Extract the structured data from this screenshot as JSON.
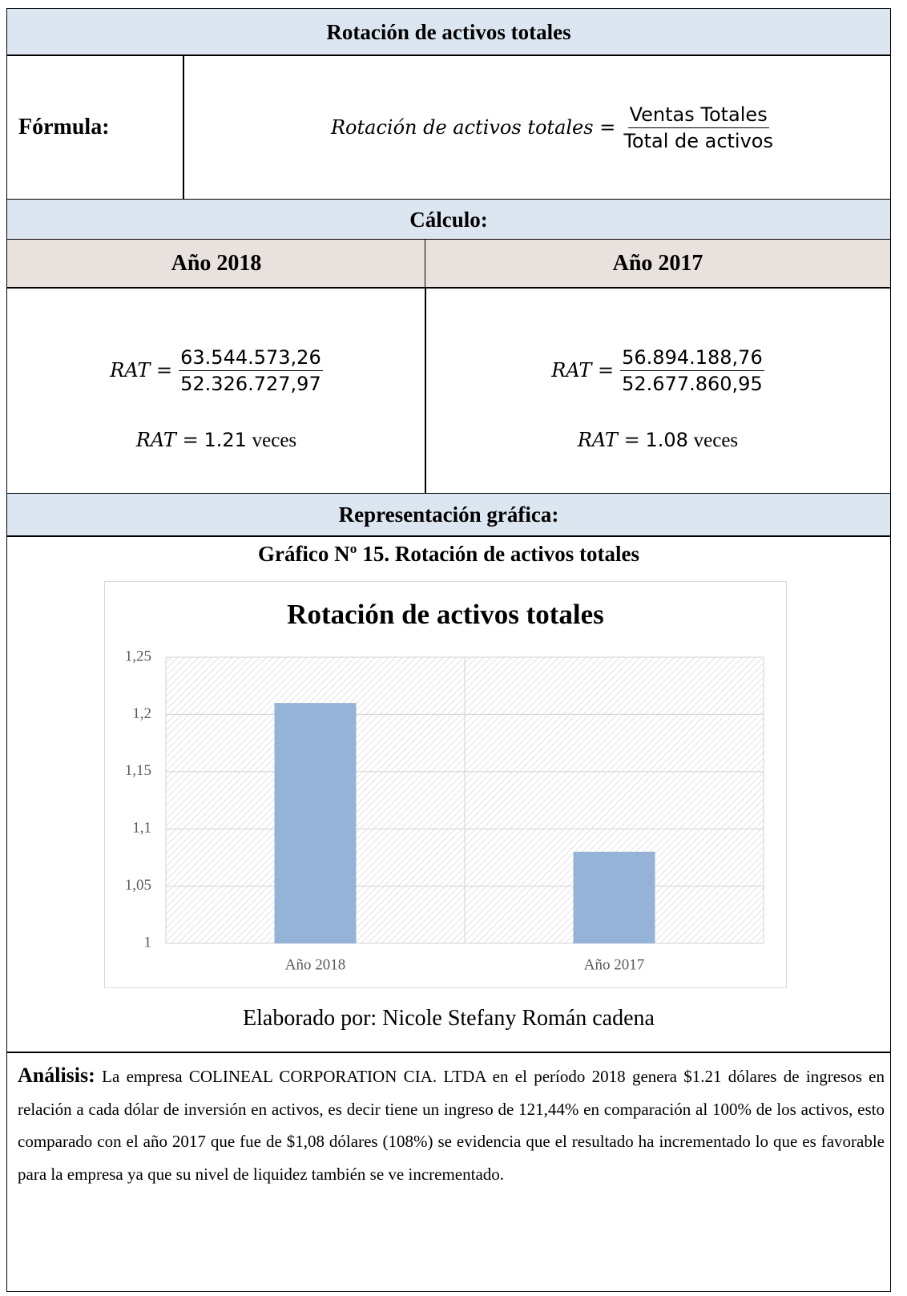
{
  "header": {
    "title": "Rotación de activos totales"
  },
  "formula": {
    "label": "Fórmula:",
    "lhs": "Rotación de activos totales =",
    "numerator": "Ventas Totales",
    "denominator": "Total de activos"
  },
  "calculation": {
    "label": "Cálculo:",
    "years": [
      {
        "year": "Año 2018",
        "lhs": "RAT =",
        "numerator": "63.544.573,26",
        "denominator": "52.326.727,97",
        "result_lhs": "RAT =",
        "result_value": "1.21",
        "unit": "veces"
      },
      {
        "year": "Año 2017",
        "lhs": "RAT =",
        "numerator": "56.894.188,76",
        "denominator": "52.677.860,95",
        "result_lhs": "RAT =",
        "result_value": "1.08",
        "unit": "veces"
      }
    ]
  },
  "graphic": {
    "label": "Representación gráfica:",
    "caption": "Gráfico Nº 15. Rotación de activos totales",
    "credit": "Elaborado por: Nicole Stefany Román cadena"
  },
  "chart_data": {
    "type": "bar",
    "title": "Rotación de activos totales",
    "categories": [
      "Año 2018",
      "Año 2017"
    ],
    "values": [
      1.21,
      1.08
    ],
    "color": "#95b3d7",
    "ylim": [
      1,
      1.25
    ],
    "yticks": [
      1,
      {
        "value": 1.05,
        "label": "1,05"
      },
      {
        "value": 1.1,
        "label": "1,1"
      },
      {
        "value": 1.15,
        "label": "1,15"
      },
      {
        "value": 1.2,
        "label": "1,2"
      },
      {
        "value": 1.25,
        "label": "1,25"
      }
    ],
    "grid": true
  },
  "analysis": {
    "label": "Análisis:",
    "text": "La empresa COLINEAL CORPORATION CIA. LTDA en el período 2018 genera $1.21 dólares de ingresos en relación a cada dólar de inversión en activos, es decir tiene un ingreso de 121,44% en comparación al 100% de los activos, esto comparado con el año 2017 que fue de $1,08 dólares (108%) se evidencia que el resultado ha incrementado lo que es favorable para la empresa ya que su nivel de liquidez también se ve incrementado."
  }
}
